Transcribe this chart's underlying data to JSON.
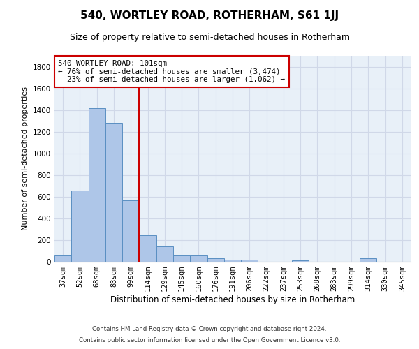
{
  "title": "540, WORTLEY ROAD, ROTHERHAM, S61 1JJ",
  "subtitle": "Size of property relative to semi-detached houses in Rotherham",
  "xlabel": "Distribution of semi-detached houses by size in Rotherham",
  "ylabel": "Number of semi-detached properties",
  "footnote1": "Contains HM Land Registry data © Crown copyright and database right 2024.",
  "footnote2": "Contains public sector information licensed under the Open Government Licence v3.0.",
  "categories": [
    "37sqm",
    "52sqm",
    "68sqm",
    "83sqm",
    "99sqm",
    "114sqm",
    "129sqm",
    "145sqm",
    "160sqm",
    "176sqm",
    "191sqm",
    "206sqm",
    "222sqm",
    "237sqm",
    "253sqm",
    "268sqm",
    "283sqm",
    "299sqm",
    "314sqm",
    "330sqm",
    "345sqm"
  ],
  "values": [
    60,
    660,
    1420,
    1280,
    565,
    245,
    140,
    60,
    55,
    30,
    20,
    20,
    0,
    0,
    10,
    0,
    0,
    0,
    30,
    0,
    0
  ],
  "bar_color": "#aec6e8",
  "bar_edge_color": "#5a8fc2",
  "property_label": "540 WORTLEY ROAD: 101sqm",
  "pct_smaller": 76,
  "count_smaller": 3474,
  "pct_larger": 23,
  "count_larger": 1062,
  "vline_color": "#cc0000",
  "vline_position": 4.5,
  "annotation_box_color": "#cc0000",
  "ylim": [
    0,
    1900
  ],
  "yticks": [
    0,
    200,
    400,
    600,
    800,
    1000,
    1200,
    1400,
    1600,
    1800
  ],
  "grid_color": "#d0d8e8",
  "bg_color": "#e8f0f8",
  "title_fontsize": 11,
  "subtitle_fontsize": 9,
  "annot_fontsize": 7.8,
  "tick_fontsize": 7.5,
  "ylabel_fontsize": 8,
  "xlabel_fontsize": 8.5,
  "footnote_fontsize": 6.2
}
